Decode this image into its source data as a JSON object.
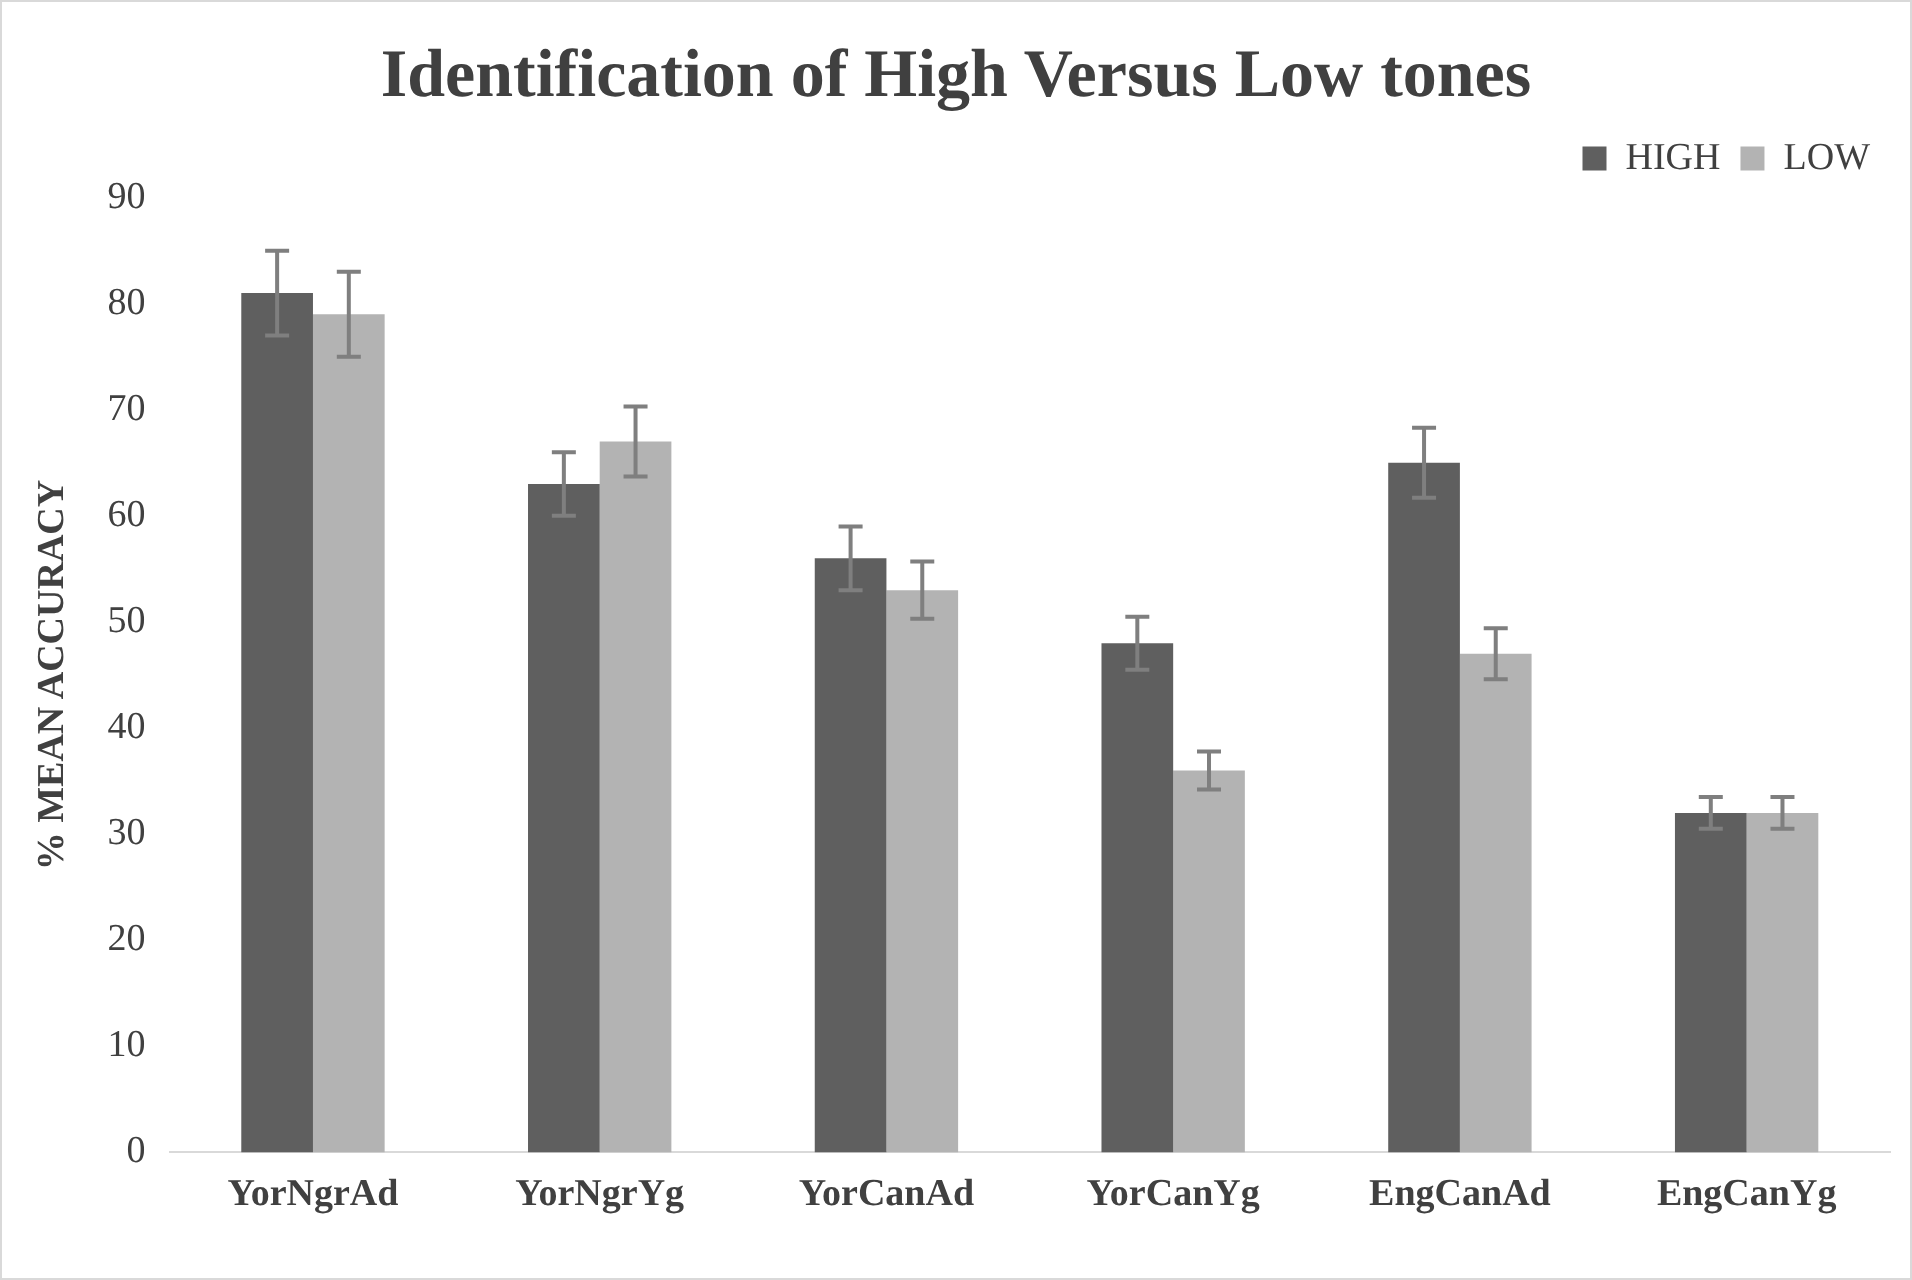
{
  "chart_data": {
    "type": "bar",
    "title": "Identification of High Versus Low tones",
    "ylabel": "% MEAN ACCURACY",
    "categories": [
      "YorNgrAd",
      "YorNgrYg",
      "YorCanAd",
      "YorCanYg",
      "EngCanAd",
      "EngCanYg"
    ],
    "series": [
      {
        "name": "HIGH",
        "color": "#5f5f5f",
        "values": [
          81,
          63,
          56,
          48,
          65,
          32
        ],
        "errors": [
          4,
          3,
          3,
          2.5,
          3.3,
          1.5
        ]
      },
      {
        "name": "LOW",
        "color": "#b3b3b3",
        "values": [
          79,
          67,
          53,
          36,
          47,
          32
        ],
        "errors": [
          4,
          3.3,
          2.7,
          1.8,
          2.4,
          1.5
        ]
      }
    ],
    "ylim": [
      0,
      90
    ],
    "yticks": [
      0,
      10,
      20,
      30,
      40,
      50,
      60,
      70,
      80,
      90
    ],
    "grid": false,
    "legend": "top right"
  }
}
